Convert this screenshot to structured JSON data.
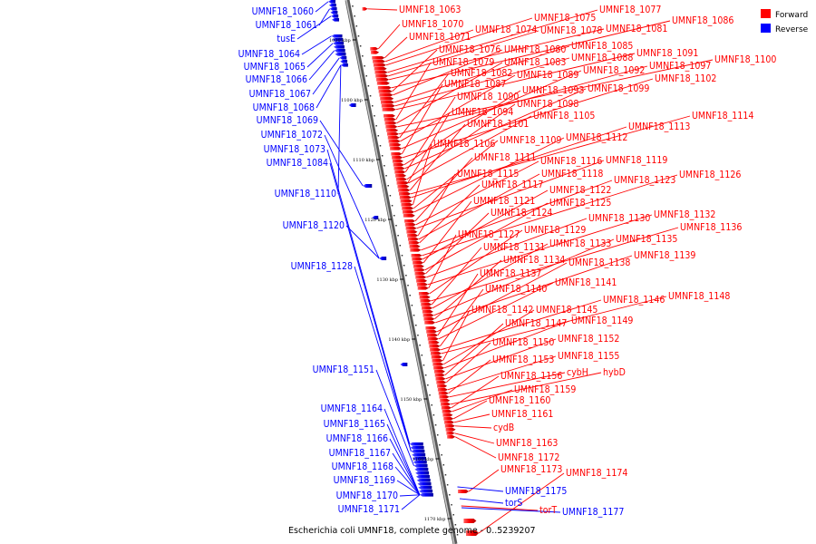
{
  "colors": {
    "forward": "#ff0000",
    "reverse": "#0000ff",
    "backbone": "#999999"
  },
  "legend": [
    {
      "label": "Forward",
      "color": "#ff0000"
    },
    {
      "label": "Reverse",
      "color": "#0000ff"
    }
  ],
  "caption": "Escherichia coli UMNF18, complete genome - 0..5239207",
  "ticks": [
    {
      "pos": 1090,
      "label": "1090 kbp"
    },
    {
      "pos": 1100,
      "label": "1100 kbp"
    },
    {
      "pos": 1110,
      "label": "1110 kbp"
    },
    {
      "pos": 1120,
      "label": "1120 kbp"
    },
    {
      "pos": 1130,
      "label": "1130 kbp"
    },
    {
      "pos": 1140,
      "label": "1140 kbp"
    },
    {
      "pos": 1150,
      "label": "1150 kbp"
    },
    {
      "pos": 1160,
      "label": "1160 kbp"
    },
    {
      "pos": 1170,
      "label": "1170 kbp"
    }
  ],
  "reverse_labels": [
    "UMNF18_1060",
    "UMNF18_1061",
    "tusE",
    "UMNF18_1064",
    "UMNF18_1065",
    "UMNF18_1066",
    "UMNF18_1067",
    "UMNF18_1068",
    "UMNF18_1069",
    "UMNF18_1072",
    "UMNF18_1073",
    "UMNF18_1084",
    "UMNF18_1110",
    "UMNF18_1120",
    "UMNF18_1128",
    "UMNF18_1151",
    "UMNF18_1164",
    "UMNF18_1165",
    "UMNF18_1166",
    "UMNF18_1167",
    "UMNF18_1168",
    "UMNF18_1169",
    "UMNF18_1170",
    "UMNF18_1171",
    "UMNF18_1175",
    "torS",
    "torT",
    "UMNF18_1177"
  ],
  "forward_labels": [
    "UMNF18_1063",
    "UMNF18_1070",
    "UMNF18_1071",
    "UMNF18_1074",
    "UMNF18_1075",
    "UMNF18_1077",
    "UMNF18_1078",
    "UMNF18_1081",
    "UMNF18_1086",
    "UMNF18_1076",
    "UMNF18_1080",
    "UMNF18_1085",
    "UMNF18_1088",
    "UMNF18_1091",
    "UMNF18_1079",
    "UMNF18_1083",
    "UMNF18_1100",
    "UMNF18_1097",
    "UMNF18_1082",
    "UMNF18_1089",
    "UMNF18_1092",
    "UMNF18_1087",
    "UMNF18_1102",
    "UMNF18_1093",
    "UMNF18_1099",
    "UMNF18_1090",
    "UMNF18_1098",
    "UMNF18_1094",
    "UMNF18_1105",
    "UMNF18_1101",
    "UMNF18_1114",
    "UMNF18_1113",
    "UMNF18_1106",
    "UMNF18_1109",
    "UMNF18_1112",
    "UMNF18_1111",
    "UMNF18_1116",
    "UMNF18_1119",
    "UMNF18_1115",
    "UMNF18_1118",
    "UMNF18_1117",
    "UMNF18_1123",
    "UMNF18_1126",
    "UMNF18_1122",
    "UMNF18_1121",
    "UMNF18_1125",
    "UMNF18_1124",
    "UMNF18_1130",
    "UMNF18_1132",
    "UMNF18_1127",
    "UMNF18_1129",
    "UMNF18_1136",
    "UMNF18_1131",
    "UMNF18_1133",
    "UMNF18_1135",
    "UMNF18_1134",
    "UMNF18_1139",
    "UMNF18_1138",
    "UMNF18_1137",
    "UMNF18_1141",
    "UMNF18_1140",
    "UMNF18_1146",
    "UMNF18_1148",
    "UMNF18_1142",
    "UMNF18_1145",
    "UMNF18_1149",
    "UMNF18_1147",
    "UMNF18_1152",
    "UMNF18_1150",
    "UMNF18_1155",
    "UMNF18_1153",
    "cybH",
    "hybD",
    "UMNF18_1156",
    "UMNF18_1159",
    "UMNF18_1160",
    "UMNF18_1161",
    "cydB",
    "UMNF18_1163",
    "UMNF18_1172",
    "UMNF18_1173",
    "UMNF18_1174"
  ]
}
